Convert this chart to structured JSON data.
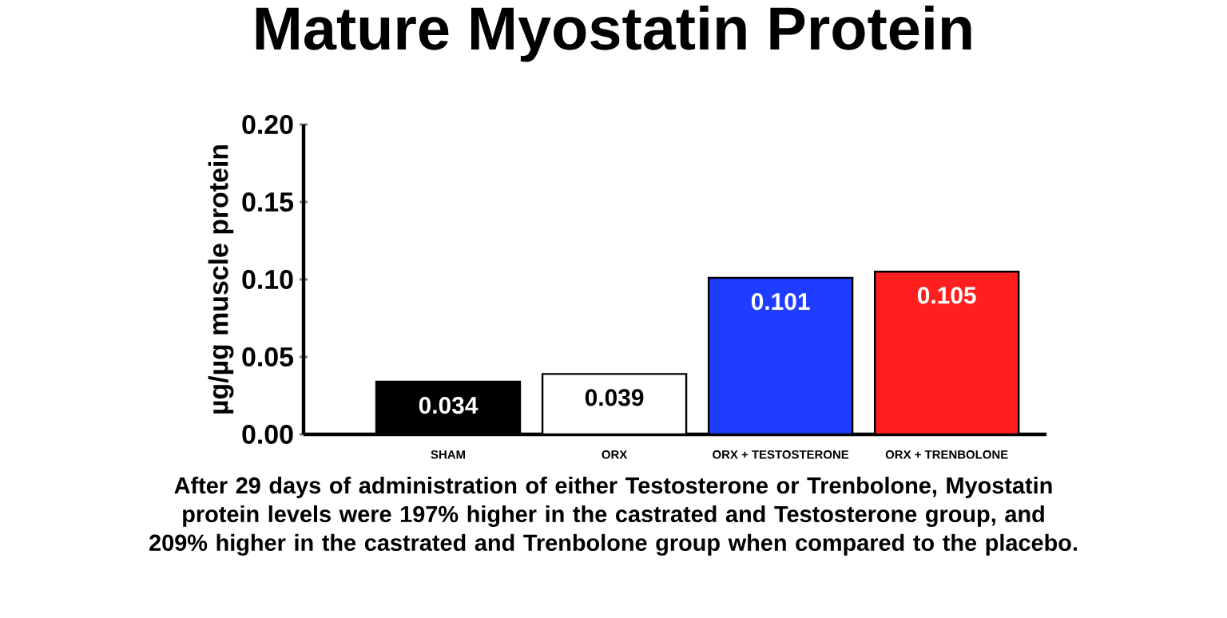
{
  "chart_data": {
    "type": "bar",
    "title": "Mature Myostatin Protein",
    "categories": [
      "SHAM",
      "ORX",
      "ORX + TESTOSTERONE",
      "ORX + TRENBOLONE"
    ],
    "values": [
      0.034,
      0.039,
      0.101,
      0.105
    ],
    "colors": [
      "#000000",
      "#ffffff",
      "#1f3dff",
      "#ff1f1f"
    ],
    "ylabel": "µg/µg muscle protein",
    "ylim": [
      0,
      0.2
    ],
    "yticks": [
      {
        "value": 0,
        "label": "0.00"
      },
      {
        "value": 0.05,
        "label": "0.05"
      },
      {
        "value": 0.1,
        "label": "0.10"
      },
      {
        "value": 0.15,
        "label": "0.15"
      },
      {
        "value": 0.2,
        "label": "0.20"
      }
    ],
    "data_labels": true,
    "grid": false,
    "annotations": [
      "After 29 days of administration of either Testosterone or Trenbolone, Myostatin protein levels were 197% higher in the castrated and Testosterone group, and 209% higher in the castrated and Trenbolone group when compared to the placebo."
    ]
  }
}
